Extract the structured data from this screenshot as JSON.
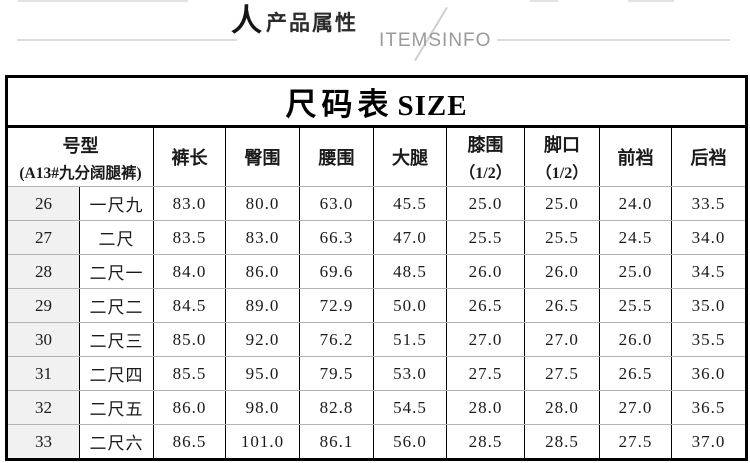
{
  "header": {
    "logo_glyph": "人",
    "title_cn": "产品属性",
    "title_en": "ITEMSINFO"
  },
  "size_table": {
    "title_cn": "尺码表",
    "title_en": "SIZE",
    "spec_header": {
      "line1": "号型",
      "line2": "(A13#九分阔腿裤)"
    },
    "columns": [
      {
        "line1": "裤长",
        "line2": ""
      },
      {
        "line1": "臀围",
        "line2": ""
      },
      {
        "line1": "腰围",
        "line2": ""
      },
      {
        "line1": "大腿",
        "line2": ""
      },
      {
        "line1": "膝围",
        "line2": "（1/2）"
      },
      {
        "line1": "脚口",
        "line2": "（1/2）"
      },
      {
        "line1": "前裆",
        "line2": ""
      },
      {
        "line1": "后裆",
        "line2": ""
      }
    ],
    "rows": [
      {
        "size_num": "26",
        "size_cn": "一尺九",
        "values": [
          "83.0",
          "80.0",
          "63.0",
          "45.5",
          "25.0",
          "25.0",
          "24.0",
          "33.5"
        ]
      },
      {
        "size_num": "27",
        "size_cn": "二尺",
        "values": [
          "83.5",
          "83.0",
          "66.3",
          "47.0",
          "25.5",
          "25.5",
          "24.5",
          "34.0"
        ]
      },
      {
        "size_num": "28",
        "size_cn": "二尺一",
        "values": [
          "84.0",
          "86.0",
          "69.6",
          "48.5",
          "26.0",
          "26.0",
          "25.0",
          "34.5"
        ]
      },
      {
        "size_num": "29",
        "size_cn": "二尺二",
        "values": [
          "84.5",
          "89.0",
          "72.9",
          "50.0",
          "26.5",
          "26.5",
          "25.5",
          "35.0"
        ]
      },
      {
        "size_num": "30",
        "size_cn": "二尺三",
        "values": [
          "85.0",
          "92.0",
          "76.2",
          "51.5",
          "27.0",
          "27.0",
          "26.0",
          "35.5"
        ]
      },
      {
        "size_num": "31",
        "size_cn": "二尺四",
        "values": [
          "85.5",
          "95.0",
          "79.5",
          "53.0",
          "27.5",
          "27.5",
          "26.5",
          "36.0"
        ]
      },
      {
        "size_num": "32",
        "size_cn": "二尺五",
        "values": [
          "86.0",
          "98.0",
          "82.8",
          "54.5",
          "28.0",
          "28.0",
          "27.0",
          "36.5"
        ]
      },
      {
        "size_num": "33",
        "size_cn": "二尺六",
        "values": [
          "86.5",
          "101.0",
          "86.1",
          "56.0",
          "28.5",
          "28.5",
          "27.5",
          "37.0"
        ]
      }
    ]
  },
  "colors": {
    "table_border": "#000000",
    "row_divider": "#b3b3b3",
    "shaded_column_bg": "#f1f1f1",
    "header_rule": "#dcdcdc",
    "en_title_gray": "#9a9a9a"
  }
}
